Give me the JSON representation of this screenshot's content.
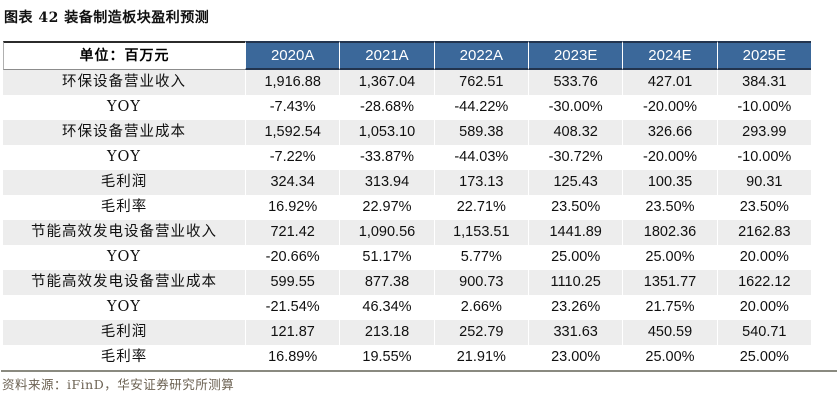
{
  "title": "图表 42 装备制造板块盈利预测",
  "table": {
    "unit_label": "单位：百万元",
    "columns": [
      "2020A",
      "2021A",
      "2022A",
      "2023E",
      "2024E",
      "2025E"
    ],
    "rows": [
      {
        "label": "环保设备营业收入",
        "values": [
          "1,916.88",
          "1,367.04",
          "762.51",
          "533.76",
          "427.01",
          "384.31"
        ]
      },
      {
        "label": "YOY",
        "values": [
          "-7.43%",
          "-28.68%",
          "-44.22%",
          "-30.00%",
          "-20.00%",
          "-10.00%"
        ]
      },
      {
        "label": "环保设备营业成本",
        "values": [
          "1,592.54",
          "1,053.10",
          "589.38",
          "408.32",
          "326.66",
          "293.99"
        ]
      },
      {
        "label": "YOY",
        "values": [
          "-7.22%",
          "-33.87%",
          "-44.03%",
          "-30.72%",
          "-20.00%",
          "-10.00%"
        ]
      },
      {
        "label": "毛利润",
        "values": [
          "324.34",
          "313.94",
          "173.13",
          "125.43",
          "100.35",
          "90.31"
        ]
      },
      {
        "label": "毛利率",
        "values": [
          "16.92%",
          "22.97%",
          "22.71%",
          "23.50%",
          "23.50%",
          "23.50%"
        ]
      },
      {
        "label": "节能高效发电设备营业收入",
        "values": [
          "721.42",
          "1,090.56",
          "1,153.51",
          "1441.89",
          "1802.36",
          "2162.83"
        ]
      },
      {
        "label": "YOY",
        "values": [
          "-20.66%",
          "51.17%",
          "5.77%",
          "25.00%",
          "25.00%",
          "20.00%"
        ]
      },
      {
        "label": "节能高效发电设备营业成本",
        "values": [
          "599.55",
          "877.38",
          "900.73",
          "1110.25",
          "1351.77",
          "1622.12"
        ]
      },
      {
        "label": "YOY",
        "values": [
          "-21.54%",
          "46.34%",
          "2.66%",
          "23.26%",
          "21.75%",
          "20.00%"
        ]
      },
      {
        "label": "毛利润",
        "values": [
          "121.87",
          "213.18",
          "252.79",
          "331.63",
          "450.59",
          "540.71"
        ]
      },
      {
        "label": "毛利率",
        "values": [
          "16.89%",
          "19.55%",
          "21.91%",
          "23.00%",
          "25.00%",
          "25.00%"
        ]
      }
    ]
  },
  "source": "资料来源：iFinD，华安证券研究所测算",
  "colors": {
    "header_bg": "#3B689A",
    "header_text": "#FFFFFF",
    "stripe_bg": "#EDEDED",
    "header_border": "#22344E",
    "top_border": "#2B2B2B",
    "bottom_rule": "#8A8A80",
    "source_text": "#6B6152",
    "body_text": "#101010"
  }
}
